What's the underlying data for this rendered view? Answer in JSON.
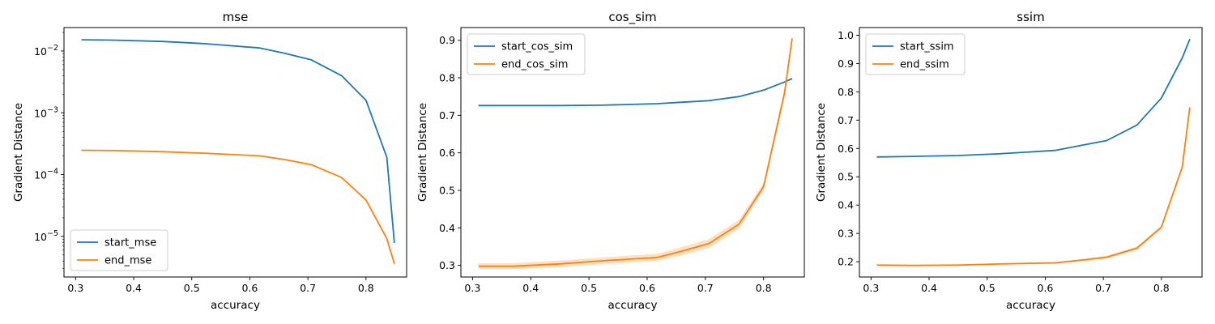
{
  "colors": {
    "start": "#1f77b4",
    "end": "#ff7f0e",
    "band": "#ffbb78"
  },
  "chart_data": [
    {
      "type": "line",
      "title": "mse",
      "xlabel": "accuracy",
      "ylabel": "Gradient Distance",
      "yscale": "log",
      "xlim": [
        0.28,
        0.87
      ],
      "ylim": [
        2.2e-06,
        0.024
      ],
      "xticks": [
        0.3,
        0.4,
        0.5,
        0.6,
        0.7,
        0.8
      ],
      "xtick_labels": [
        "0.3",
        "0.4",
        "0.5",
        "0.6",
        "0.7",
        "0.8"
      ],
      "yticks": [
        1e-05,
        0.0001,
        0.001,
        0.01
      ],
      "ytick_labels": [
        {
          "base": "10",
          "exp": "−5"
        },
        {
          "base": "10",
          "exp": "−4"
        },
        {
          "base": "10",
          "exp": "−3"
        },
        {
          "base": "10",
          "exp": "−2"
        }
      ],
      "legend": "lower-left",
      "series": [
        {
          "name": "start_mse",
          "x": [
            0.31,
            0.37,
            0.45,
            0.52,
            0.617,
            0.66,
            0.706,
            0.758,
            0.8,
            0.836,
            0.849
          ],
          "y": [
            0.0152,
            0.015,
            0.0143,
            0.0132,
            0.0112,
            0.0092,
            0.0072,
            0.004,
            0.0016,
            0.00019,
            7.8e-06
          ]
        },
        {
          "name": "end_mse",
          "x": [
            0.31,
            0.37,
            0.45,
            0.52,
            0.617,
            0.66,
            0.706,
            0.758,
            0.8,
            0.836,
            0.849
          ],
          "y": [
            0.000248,
            0.000245,
            0.000235,
            0.000222,
            0.000201,
            0.000175,
            0.000145,
            9e-05,
            3.9e-05,
            9.2e-06,
            3.6e-06
          ]
        }
      ]
    },
    {
      "type": "line",
      "title": "cos_sim",
      "xlabel": "accuracy",
      "ylabel": "Gradient Distance",
      "yscale": "linear",
      "xlim": [
        0.28,
        0.87
      ],
      "ylim": [
        0.269,
        0.934
      ],
      "xticks": [
        0.3,
        0.4,
        0.5,
        0.6,
        0.7,
        0.8
      ],
      "xtick_labels": [
        "0.3",
        "0.4",
        "0.5",
        "0.6",
        "0.7",
        "0.8"
      ],
      "yticks": [
        0.3,
        0.4,
        0.5,
        0.6,
        0.7,
        0.8,
        0.9
      ],
      "ytick_labels": [
        "0.3",
        "0.4",
        "0.5",
        "0.6",
        "0.7",
        "0.8",
        "0.9"
      ],
      "legend": "upper-left",
      "series": [
        {
          "name": "start_cos_sim",
          "x": [
            0.31,
            0.37,
            0.45,
            0.52,
            0.617,
            0.66,
            0.706,
            0.758,
            0.8,
            0.836,
            0.849
          ],
          "y": [
            0.726,
            0.726,
            0.726,
            0.727,
            0.731,
            0.735,
            0.739,
            0.75,
            0.767,
            0.789,
            0.798
          ]
        },
        {
          "name": "end_cos_sim",
          "x": [
            0.31,
            0.37,
            0.45,
            0.52,
            0.617,
            0.66,
            0.706,
            0.758,
            0.8,
            0.836,
            0.849
          ],
          "y": [
            0.298,
            0.298,
            0.304,
            0.312,
            0.321,
            0.338,
            0.358,
            0.41,
            0.51,
            0.76,
            0.905
          ],
          "band": [
            0.008,
            0.008,
            0.009,
            0.009,
            0.01,
            0.011,
            0.012,
            0.012,
            0.01,
            0.012,
            0.01
          ]
        }
      ]
    },
    {
      "type": "line",
      "title": "ssim",
      "xlabel": "accuracy",
      "ylabel": "Gradient Distance",
      "yscale": "linear",
      "xlim": [
        0.28,
        0.87
      ],
      "ylim": [
        0.146,
        1.027
      ],
      "xticks": [
        0.3,
        0.4,
        0.5,
        0.6,
        0.7,
        0.8
      ],
      "xtick_labels": [
        "0.3",
        "0.4",
        "0.5",
        "0.6",
        "0.7",
        "0.8"
      ],
      "yticks": [
        0.2,
        0.3,
        0.4,
        0.5,
        0.6,
        0.7,
        0.8,
        0.9,
        1.0
      ],
      "ytick_labels": [
        "0.2",
        "0.3",
        "0.4",
        "0.5",
        "0.6",
        "0.7",
        "0.8",
        "0.9",
        "1.0"
      ],
      "legend": "upper-left",
      "series": [
        {
          "name": "start_ssim",
          "x": [
            0.31,
            0.37,
            0.45,
            0.52,
            0.617,
            0.66,
            0.706,
            0.758,
            0.8,
            0.836,
            0.849
          ],
          "y": [
            0.57,
            0.572,
            0.575,
            0.581,
            0.593,
            0.61,
            0.628,
            0.683,
            0.778,
            0.92,
            0.986
          ]
        },
        {
          "name": "end_ssim",
          "x": [
            0.31,
            0.37,
            0.45,
            0.52,
            0.617,
            0.66,
            0.706,
            0.758,
            0.8,
            0.836,
            0.849
          ],
          "y": [
            0.188,
            0.187,
            0.188,
            0.192,
            0.196,
            0.205,
            0.216,
            0.248,
            0.322,
            0.535,
            0.745
          ],
          "band": [
            0.002,
            0.002,
            0.002,
            0.003,
            0.003,
            0.004,
            0.005,
            0.006,
            0.006,
            0.006,
            0.006
          ]
        }
      ]
    }
  ]
}
